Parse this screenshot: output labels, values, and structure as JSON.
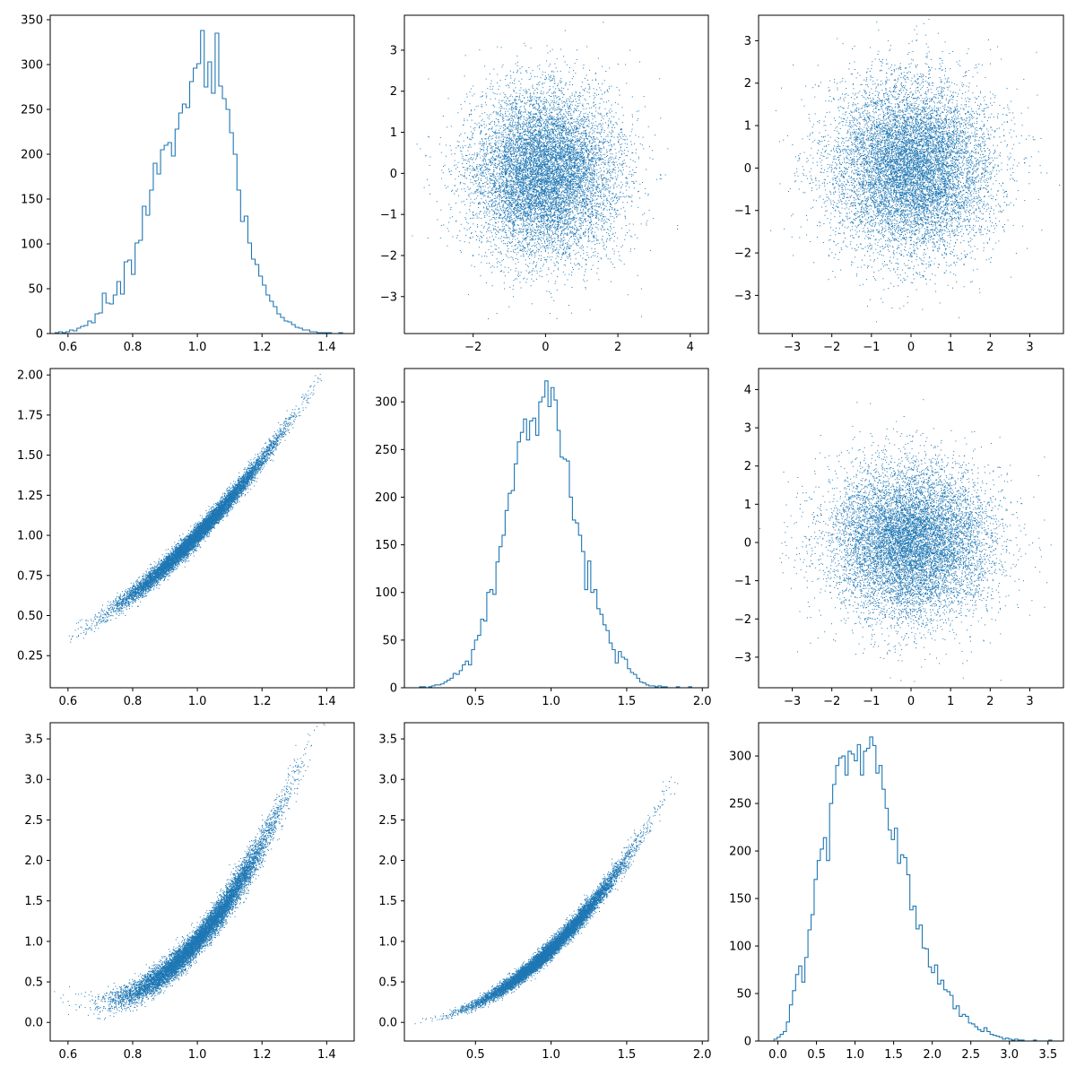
{
  "chart_data": [
    {
      "panel": "row1-col1",
      "type": "histogram",
      "histtype": "step",
      "color": "#1f77b4",
      "xlim": [
        0.545,
        1.485
      ],
      "ylim": [
        0,
        355
      ],
      "xticks": [
        0.6,
        0.8,
        1.0,
        1.2,
        1.4
      ],
      "xtick_labels": [
        "0.6",
        "0.8",
        "1.0",
        "1.2",
        "1.4"
      ],
      "yticks": [
        0,
        50,
        100,
        150,
        200,
        250,
        300,
        350
      ],
      "ytick_labels": [
        "0",
        "50",
        "100",
        "150",
        "200",
        "250",
        "300",
        "350"
      ],
      "bin_range": [
        0.56,
        1.46
      ],
      "values": [
        1,
        2,
        1,
        2,
        4,
        3,
        6,
        8,
        9,
        14,
        12,
        22,
        23,
        45,
        34,
        33,
        43,
        58,
        44,
        80,
        82,
        66,
        101,
        104,
        142,
        132,
        160,
        190,
        178,
        205,
        210,
        213,
        198,
        228,
        246,
        256,
        252,
        281,
        296,
        301,
        338,
        275,
        303,
        268,
        335,
        276,
        262,
        250,
        224,
        200,
        160,
        125,
        131,
        101,
        83,
        77,
        64,
        54,
        43,
        36,
        30,
        22,
        18,
        14,
        13,
        10,
        7,
        6,
        4,
        4,
        2,
        2,
        1,
        1,
        1,
        1,
        0,
        0,
        1,
        0
      ]
    },
    {
      "panel": "row1-col2",
      "type": "scatter",
      "marker": "pixel",
      "color": "#1f77b4",
      "xlim": [
        -3.9,
        4.5
      ],
      "ylim": [
        -3.9,
        3.85
      ],
      "xticks": [
        -2,
        0,
        2,
        4
      ],
      "xtick_labels": [
        "−2",
        "0",
        "2",
        "4"
      ],
      "yticks": [
        -3,
        -2,
        -1,
        0,
        1,
        2,
        3
      ],
      "ytick_labels": [
        "−3",
        "−2",
        "−1",
        "0",
        "1",
        "2",
        "3"
      ],
      "distribution": "independent standard normal",
      "n_points": 10000,
      "x_mean": 0,
      "x_sd": 1,
      "y_mean": 0,
      "y_sd": 1
    },
    {
      "panel": "row1-col3",
      "type": "scatter",
      "marker": "pixel",
      "color": "#1f77b4",
      "xlim": [
        -3.85,
        3.85
      ],
      "ylim": [
        -3.9,
        3.6
      ],
      "xticks": [
        -3,
        -2,
        -1,
        0,
        1,
        2,
        3
      ],
      "xtick_labels": [
        "−3",
        "−2",
        "−1",
        "0",
        "1",
        "2",
        "3"
      ],
      "yticks": [
        -3,
        -2,
        -1,
        0,
        1,
        2,
        3
      ],
      "ytick_labels": [
        "−3",
        "−2",
        "−1",
        "0",
        "1",
        "2",
        "3"
      ],
      "distribution": "independent standard normal",
      "n_points": 10000,
      "x_mean": 0,
      "x_sd": 1,
      "y_mean": 0,
      "y_sd": 1
    },
    {
      "panel": "row2-col1",
      "type": "scatter",
      "marker": "pixel",
      "color": "#1f77b4",
      "xlim": [
        0.545,
        1.485
      ],
      "ylim": [
        0.05,
        2.04
      ],
      "xticks": [
        0.6,
        0.8,
        1.0,
        1.2,
        1.4
      ],
      "xtick_labels": [
        "0.6",
        "0.8",
        "1.0",
        "1.2",
        "1.4"
      ],
      "yticks": [
        0.25,
        0.5,
        0.75,
        1.0,
        1.25,
        1.5,
        1.75,
        2.0
      ],
      "ytick_labels": [
        "0.25",
        "0.50",
        "0.75",
        "1.00",
        "1.25",
        "1.50",
        "1.75",
        "2.00"
      ],
      "distribution": "strong positive correlation",
      "n_points": 10000,
      "x_mean": 1.0,
      "x_sd": 0.12,
      "relation": "y ≈ 1 + 2.1·(x − 1) + 1.3·(x − 1)²",
      "y_noise_sd": 0.03
    },
    {
      "panel": "row2-col2",
      "type": "histogram",
      "histtype": "step",
      "color": "#1f77b4",
      "xlim": [
        0.03,
        2.04
      ],
      "ylim": [
        0,
        335
      ],
      "xticks": [
        0.5,
        1.0,
        1.5,
        2.0
      ],
      "xtick_labels": [
        "0.5",
        "1.0",
        "1.5",
        "2.0"
      ],
      "yticks": [
        0,
        50,
        100,
        150,
        200,
        250,
        300
      ],
      "ytick_labels": [
        "0",
        "50",
        "100",
        "150",
        "200",
        "250",
        "300"
      ],
      "bin_range": [
        0.13,
        1.95
      ],
      "values": [
        1,
        1,
        0,
        1,
        2,
        3,
        3,
        4,
        6,
        8,
        10,
        15,
        14,
        18,
        24,
        28,
        24,
        40,
        50,
        55,
        72,
        70,
        100,
        103,
        98,
        132,
        148,
        160,
        186,
        204,
        207,
        235,
        258,
        268,
        282,
        260,
        280,
        283,
        265,
        300,
        305,
        322,
        295,
        315,
        302,
        270,
        242,
        240,
        238,
        200,
        176,
        173,
        160,
        143,
        103,
        133,
        100,
        103,
        83,
        77,
        66,
        60,
        47,
        40,
        26,
        38,
        32,
        30,
        20,
        16,
        14,
        10,
        6,
        5,
        3,
        2,
        2,
        1,
        2,
        1,
        1,
        0,
        0,
        0,
        1,
        0,
        0,
        0,
        1,
        0
      ]
    },
    {
      "panel": "row2-col3",
      "type": "scatter",
      "marker": "pixel",
      "color": "#1f77b4",
      "xlim": [
        -3.85,
        3.85
      ],
      "ylim": [
        -3.8,
        4.55
      ],
      "xticks": [
        -3,
        -2,
        -1,
        0,
        1,
        2,
        3
      ],
      "xtick_labels": [
        "−3",
        "−2",
        "−1",
        "0",
        "1",
        "2",
        "3"
      ],
      "yticks": [
        -3,
        -2,
        -1,
        0,
        1,
        2,
        3,
        4
      ],
      "ytick_labels": [
        "−3",
        "−2",
        "−1",
        "0",
        "1",
        "2",
        "3",
        "4"
      ],
      "distribution": "independent standard normal",
      "n_points": 10000,
      "x_mean": 0,
      "x_sd": 1,
      "y_mean": 0,
      "y_sd": 1
    },
    {
      "panel": "row3-col1",
      "type": "scatter",
      "marker": "pixel",
      "color": "#1f77b4",
      "xlim": [
        0.545,
        1.485
      ],
      "ylim": [
        -0.23,
        3.7
      ],
      "xticks": [
        0.6,
        0.8,
        1.0,
        1.2,
        1.4
      ],
      "xtick_labels": [
        "0.6",
        "0.8",
        "1.0",
        "1.2",
        "1.4"
      ],
      "yticks": [
        0.0,
        0.5,
        1.0,
        1.5,
        2.0,
        2.5,
        3.0,
        3.5
      ],
      "ytick_labels": [
        "0.0",
        "0.5",
        "1.0",
        "1.5",
        "2.0",
        "2.5",
        "3.0",
        "3.5"
      ],
      "distribution": "convex positive relation",
      "n_points": 10000,
      "x_mean": 1.0,
      "x_sd": 0.12,
      "relation": "y ≈ 1 + 4.6·(x − 1) + 7·(x − 1)²",
      "y_noise_sd": 0.08
    },
    {
      "panel": "row3-col2",
      "type": "scatter",
      "marker": "pixel",
      "color": "#1f77b4",
      "xlim": [
        0.03,
        2.04
      ],
      "ylim": [
        -0.23,
        3.7
      ],
      "xticks": [
        0.5,
        1.0,
        1.5,
        2.0
      ],
      "xtick_labels": [
        "0.5",
        "1.0",
        "1.5",
        "2.0"
      ],
      "yticks": [
        0.0,
        0.5,
        1.0,
        1.5,
        2.0,
        2.5,
        3.0,
        3.5
      ],
      "ytick_labels": [
        "0.0",
        "0.5",
        "1.0",
        "1.5",
        "2.0",
        "2.5",
        "3.0",
        "3.5"
      ],
      "distribution": "convex positive relation",
      "n_points": 10000,
      "x_mean": 1.0,
      "x_sd": 0.25,
      "relation": "y ≈ 0.9·x²",
      "y_noise_sd": 0.035
    },
    {
      "panel": "row3-col3",
      "type": "histogram",
      "histtype": "step",
      "color": "#1f77b4",
      "xlim": [
        -0.25,
        3.7
      ],
      "ylim": [
        0,
        335
      ],
      "xticks": [
        0.0,
        0.5,
        1.0,
        1.5,
        2.0,
        2.5,
        3.0,
        3.5
      ],
      "xtick_labels": [
        "0.0",
        "0.5",
        "1.0",
        "1.5",
        "2.0",
        "2.5",
        "3.0",
        "3.5"
      ],
      "yticks": [
        0,
        50,
        100,
        150,
        200,
        250,
        300
      ],
      "ytick_labels": [
        "0",
        "50",
        "100",
        "150",
        "200",
        "250",
        "300"
      ],
      "bin_range": [
        -0.05,
        3.55
      ],
      "values": [
        2,
        4,
        7,
        10,
        20,
        38,
        53,
        70,
        79,
        62,
        88,
        117,
        133,
        170,
        190,
        202,
        214,
        190,
        250,
        270,
        290,
        298,
        300,
        280,
        305,
        302,
        295,
        312,
        280,
        305,
        308,
        320,
        311,
        282,
        290,
        265,
        245,
        222,
        212,
        224,
        187,
        196,
        193,
        175,
        138,
        142,
        118,
        122,
        98,
        97,
        78,
        72,
        80,
        60,
        64,
        54,
        52,
        48,
        34,
        37,
        26,
        28,
        26,
        19,
        18,
        15,
        12,
        10,
        14,
        10,
        7,
        6,
        5,
        4,
        2,
        3,
        2,
        1,
        2,
        1,
        1,
        0,
        0,
        0,
        1,
        0,
        0,
        0,
        0,
        1
      ]
    }
  ]
}
